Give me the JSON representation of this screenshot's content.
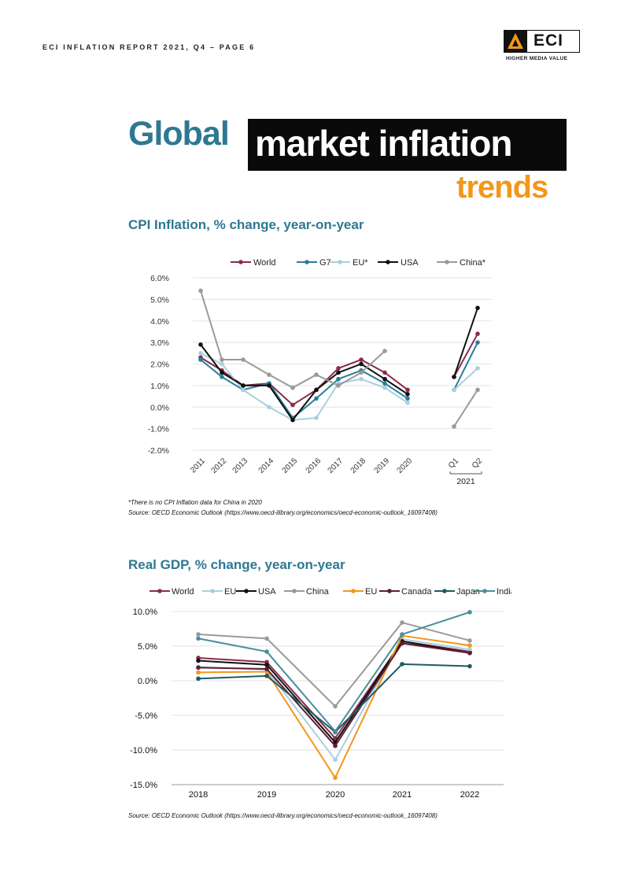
{
  "header": {
    "text": "ECI INFLATION REPORT 2021, Q4  – PAGE 6"
  },
  "logo": {
    "text": "ECI",
    "tagline": "HIGHER MEDIA VALUE",
    "icon": "eci-triangle-icon"
  },
  "title": {
    "part1": "Global",
    "part2": "market inflation",
    "part3": "trends"
  },
  "colors": {
    "teal": "#2e7891",
    "orange": "#f2971a",
    "black": "#0a0a0a"
  },
  "chart1": {
    "heading": "CPI Inflation, % change, year-on-year",
    "footnote": "*There is no CPI Inflation data for China in 2020",
    "source": "Source: OECD Economic Outlook (https://www.oecd-ilibrary.org/economics/oecd-economic-outlook_16097408)"
  },
  "chart2": {
    "heading": "Real GDP, % change, year-on-year",
    "source": "Source: OECD Economic Outlook (https://www.oecd-ilibrary.org/economics/oecd-economic-outlook_16097408)"
  },
  "chart_data": [
    {
      "type": "line",
      "title": "CPI Inflation, % change, year-on-year",
      "categories": [
        "2011",
        "2012",
        "2013",
        "2014",
        "2015",
        "2016",
        "2017",
        "2018",
        "2019",
        "2020",
        "Q1",
        "Q2"
      ],
      "group_label": "2021",
      "ylim": [
        -2,
        6
      ],
      "yticks": [
        -2,
        -1,
        0,
        1,
        2,
        3,
        4,
        5,
        6
      ],
      "ytick_labels": [
        "-2.0%",
        "-1.0%",
        "0.0%",
        "1.0%",
        "2.0%",
        "3.0%",
        "4.0%",
        "5.0%",
        "6.0%"
      ],
      "series": [
        {
          "name": "World",
          "color": "#8c2a4c",
          "values": [
            2.3,
            1.7,
            1.0,
            1.1,
            0.1,
            0.8,
            1.8,
            2.2,
            1.6,
            0.8,
            1.4,
            3.4
          ]
        },
        {
          "name": "G7",
          "color": "#2a7e96",
          "values": [
            2.2,
            1.4,
            0.8,
            1.1,
            -0.5,
            0.4,
            1.3,
            1.7,
            1.1,
            0.4,
            0.8,
            3.0
          ]
        },
        {
          "name": "EU*",
          "color": "#a9cfdf",
          "values": [
            2.5,
            2.0,
            0.8,
            0.0,
            -0.6,
            -0.5,
            1.1,
            1.3,
            0.9,
            0.2,
            0.8,
            1.8
          ]
        },
        {
          "name": "USA",
          "color": "#111111",
          "values": [
            2.9,
            1.6,
            1.0,
            1.0,
            -0.6,
            0.8,
            1.6,
            2.0,
            1.3,
            0.6,
            1.4,
            4.6
          ]
        },
        {
          "name": "China*",
          "color": "#9a9a9a",
          "values": [
            5.4,
            2.2,
            2.2,
            1.5,
            0.9,
            1.5,
            1.0,
            1.6,
            2.6,
            null,
            -0.9,
            0.8
          ]
        }
      ]
    },
    {
      "type": "line",
      "title": "Real GDP, % change, year-on-year",
      "categories": [
        "2018",
        "2019",
        "2020",
        "2021",
        "2022"
      ],
      "ylim": [
        -15,
        10
      ],
      "yticks": [
        -15,
        -10,
        -5,
        0,
        5,
        10
      ],
      "ytick_labels": [
        "-15.0%",
        "-10.0%",
        "-5.0%",
        "0.0%",
        "5.0%",
        "10.0%"
      ],
      "series": [
        {
          "name": "World",
          "color": "#8c2a4c",
          "values": [
            3.3,
            2.7,
            -8.3,
            5.7,
            4.2
          ]
        },
        {
          "name": "EU",
          "color": "#a9cfdf",
          "values": [
            2.0,
            1.6,
            -11.4,
            6.0,
            4.5
          ]
        },
        {
          "name": "USA",
          "color": "#111111",
          "values": [
            2.9,
            2.3,
            -8.9,
            5.7,
            4.0
          ]
        },
        {
          "name": "China",
          "color": "#9a9a9a",
          "values": [
            6.7,
            6.1,
            -3.7,
            8.4,
            5.8
          ]
        },
        {
          "name": "EU",
          "color": "#f2971a",
          "values": [
            1.2,
            1.3,
            -14.0,
            6.5,
            5.1
          ]
        },
        {
          "name": "Canada",
          "color": "#5a1e36",
          "values": [
            1.9,
            1.7,
            -9.4,
            5.4,
            4.0
          ]
        },
        {
          "name": "Japan",
          "color": "#1f5a60",
          "values": [
            0.3,
            0.7,
            -7.4,
            2.4,
            2.1
          ]
        },
        {
          "name": "India",
          "color": "#4a8e9e",
          "values": [
            6.1,
            4.2,
            -7.3,
            6.7,
            9.9
          ]
        }
      ]
    }
  ]
}
